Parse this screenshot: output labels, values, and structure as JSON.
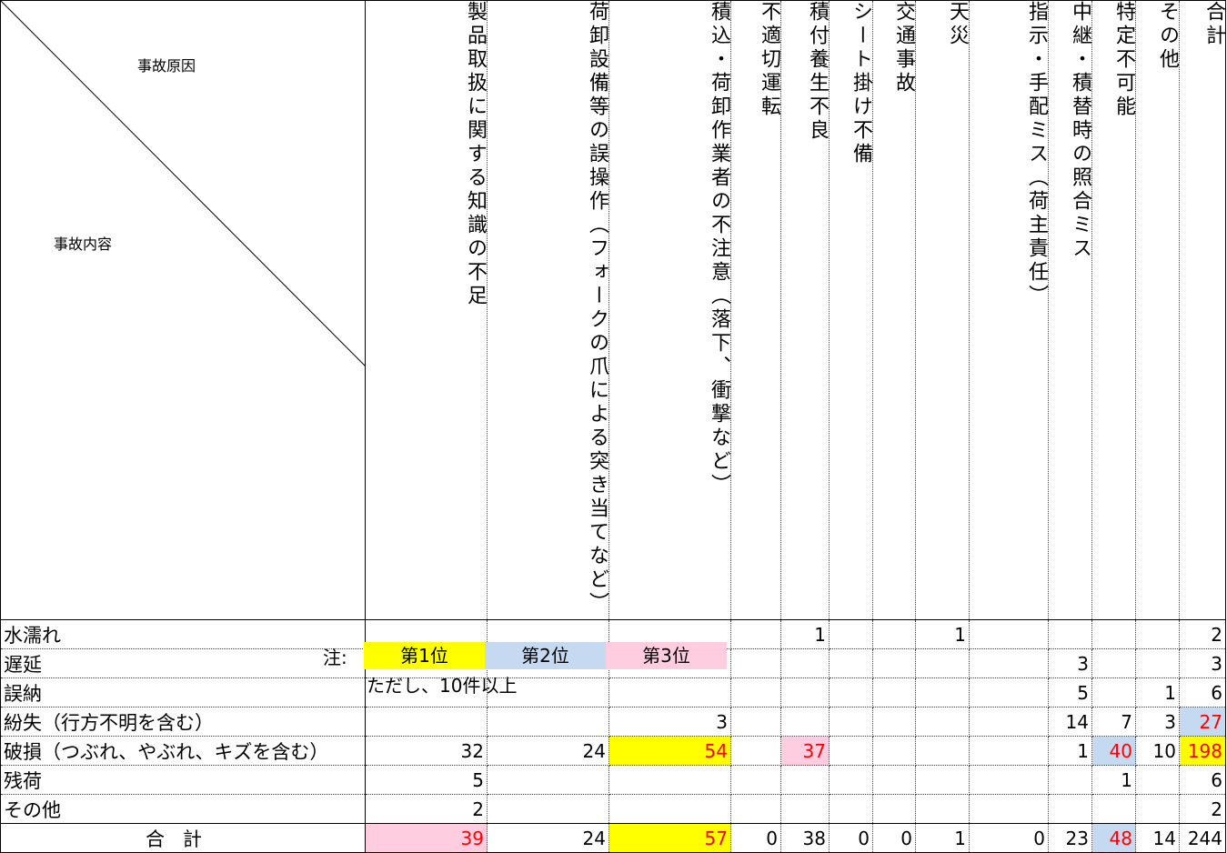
{
  "corner": {
    "top_label": "事故原因",
    "bottom_label": "事故内容"
  },
  "columns": [
    "製品取扱に関する知識の不足",
    "荷卸設備等の誤操作（フォークの爪による突き当てなど）",
    "積込・荷卸作業者の不注意（落下、衝撃など）",
    "不適切運転",
    "積付養生不良",
    "シート掛け不備",
    "交通事故",
    "天災",
    "指示・手配ミス（荷主責任）",
    "中継・積替時の照合ミス",
    "特定不可能",
    "その他",
    "合計"
  ],
  "rows": [
    {
      "label": "水濡れ",
      "cells": [
        "",
        "",
        "",
        "",
        "1",
        "",
        "",
        "1",
        "",
        "",
        "",
        "",
        "2"
      ]
    },
    {
      "label": "遅延",
      "cells": [
        "",
        "",
        "",
        "",
        "",
        "",
        "",
        "",
        "",
        "3",
        "",
        "",
        "3"
      ]
    },
    {
      "label": "誤納",
      "cells": [
        "",
        "",
        "",
        "",
        "",
        "",
        "",
        "",
        "",
        "5",
        "",
        "1",
        "6"
      ]
    },
    {
      "label": "紛失（行方不明を含む）",
      "cells": [
        "",
        "",
        "3",
        "",
        "",
        "",
        "",
        "",
        "",
        "14",
        "7",
        "3",
        "27"
      ]
    },
    {
      "label": "破損（つぶれ、やぶれ、キズを含む）",
      "cells": [
        "32",
        "24",
        "54",
        "",
        "37",
        "",
        "",
        "",
        "",
        "1",
        "40",
        "10",
        "198"
      ]
    },
    {
      "label": "残荷",
      "cells": [
        "5",
        "",
        "",
        "",
        "",
        "",
        "",
        "",
        "",
        "",
        "1",
        "",
        "6"
      ]
    },
    {
      "label": "その他",
      "cells": [
        "2",
        "",
        "",
        "",
        "",
        "",
        "",
        "",
        "",
        "",
        "",
        "",
        "2"
      ]
    }
  ],
  "total_row": {
    "label": "合計",
    "cells": [
      "39",
      "24",
      "57",
      "0",
      "38",
      "0",
      "0",
      "1",
      "0",
      "23",
      "48",
      "14",
      "244"
    ]
  },
  "legend": {
    "label": "注:",
    "rank1": "第1位",
    "rank2": "第2位",
    "rank3": "第3位",
    "note": "ただし、10件以上",
    "colors": {
      "rank1": "#ffff00",
      "rank2": "#c5d9f1",
      "rank3": "#ffcce0",
      "highlight_text": "#ff0000"
    }
  }
}
